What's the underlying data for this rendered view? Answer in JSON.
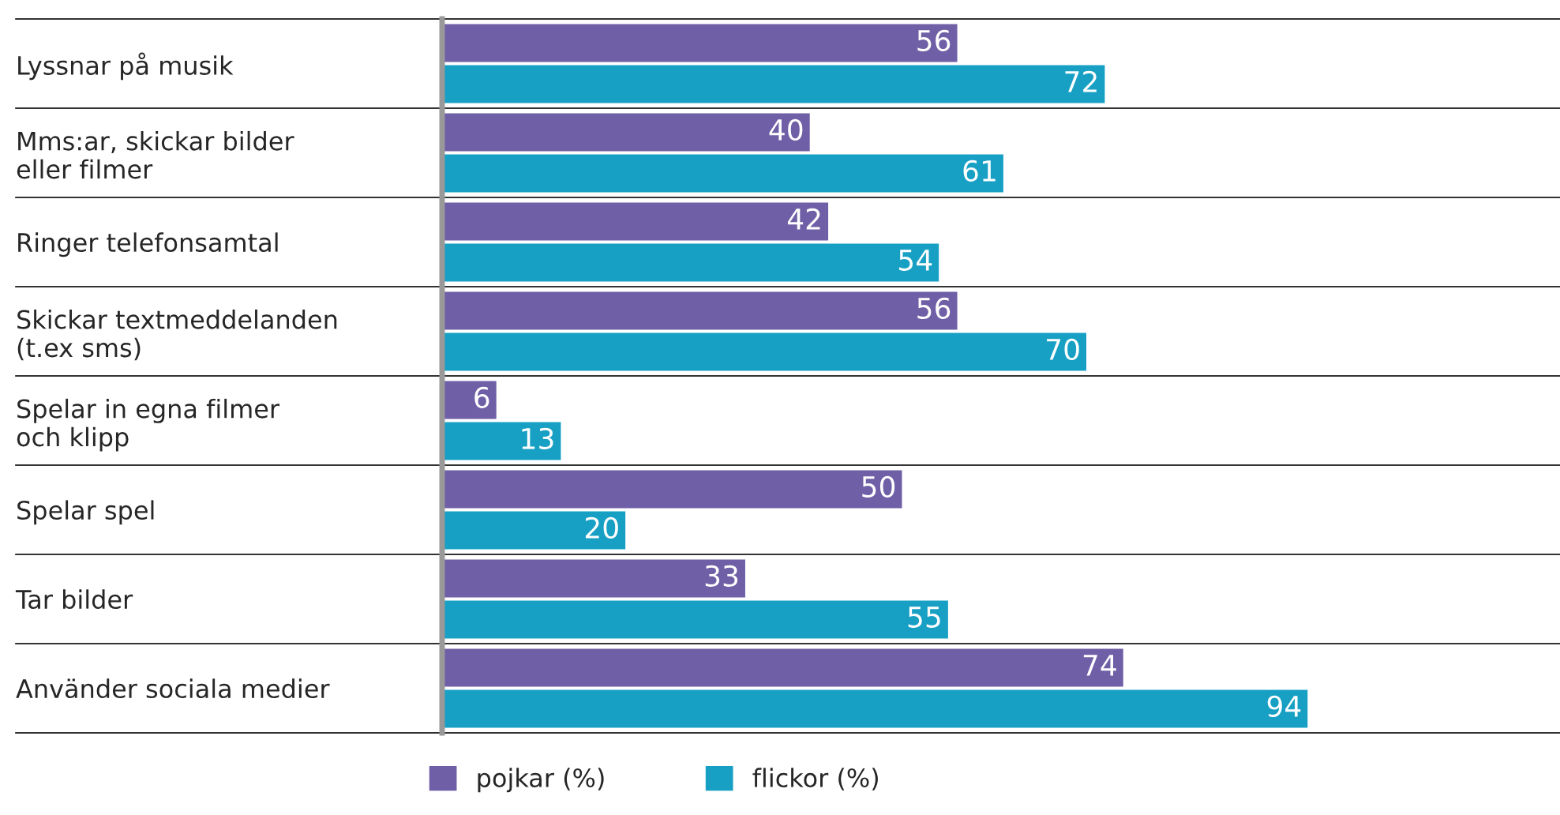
{
  "chart_data": {
    "type": "bar",
    "orientation": "horizontal",
    "categories": [
      "Lyssnar på musik",
      "Mms:ar, skickar bilder\neller filmer",
      "Ringer telefonsamtal",
      "Skickar textmeddelanden\n(t.ex sms)",
      "Spelar in egna filmer\noch klipp",
      "Spelar spel",
      "Tar bilder",
      "Använder sociala medier"
    ],
    "series": [
      {
        "name": "pojkar (%)",
        "color": "#6f5fa6",
        "values": [
          56,
          40,
          42,
          56,
          6,
          50,
          33,
          74
        ]
      },
      {
        "name": "flickor (%)",
        "color": "#17a0c4",
        "values": [
          72,
          61,
          54,
          70,
          13,
          20,
          55,
          94
        ]
      }
    ],
    "data_labels": true,
    "legend": "bottom",
    "grid": false
  }
}
